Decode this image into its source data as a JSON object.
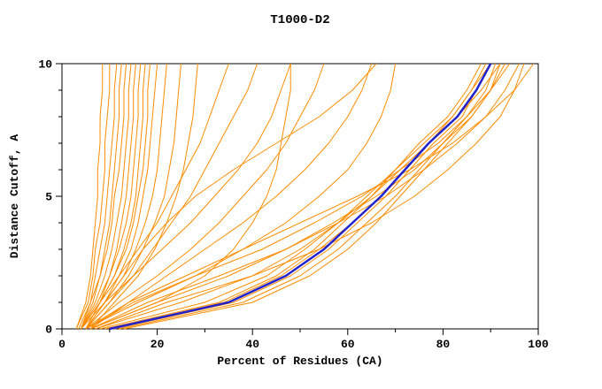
{
  "chart_data": {
    "type": "line",
    "title": "T1000-D2",
    "xlabel": "Percent of Residues (CA)",
    "ylabel": "Distance Cutoff, A",
    "xlim": [
      0,
      100
    ],
    "ylim": [
      0,
      10
    ],
    "xticks": [
      0,
      20,
      40,
      60,
      80,
      100
    ],
    "xminor_step": 10,
    "yticks": [
      0,
      5,
      10
    ],
    "yminor_step": 1,
    "grid": false,
    "legend": "none",
    "colors": {
      "model": "#FF8C00",
      "highlight": "#2222CC",
      "axis": "#000000",
      "background": "#FFFFFF"
    },
    "y_levels": [
      0,
      1,
      2,
      3,
      4,
      5,
      6,
      7,
      8,
      9,
      10
    ],
    "models": {
      "color_key": "model",
      "curves": [
        [
          3,
          5,
          6,
          6.5,
          7,
          7.5,
          7.5,
          8,
          8,
          8.5,
          8.5
        ],
        [
          3,
          5.5,
          6.5,
          7,
          8,
          8.5,
          9,
          9,
          9.5,
          10,
          10
        ],
        [
          4,
          6,
          7,
          8,
          9,
          9.5,
          10,
          10.5,
          11,
          11,
          11.5
        ],
        [
          4,
          6.5,
          8,
          9,
          10,
          10.5,
          11,
          11.5,
          12,
          12,
          12.5
        ],
        [
          3.5,
          6,
          8,
          9.5,
          10.5,
          11,
          12,
          12.5,
          13,
          13,
          13.5
        ],
        [
          4,
          7,
          9,
          10.5,
          11.5,
          12.5,
          13,
          13.5,
          14,
          14,
          14.5
        ],
        [
          5,
          8,
          10,
          11.5,
          12.5,
          13.5,
          14,
          14.5,
          15,
          15,
          15.5
        ],
        [
          4,
          7.5,
          10,
          12,
          13.5,
          14.5,
          15,
          15.5,
          16,
          16,
          16.5
        ],
        [
          5,
          8,
          11,
          13,
          14.5,
          15.5,
          16,
          16.5,
          17,
          17,
          17.5
        ],
        [
          4,
          8,
          11,
          13.5,
          15,
          16,
          17,
          17.5,
          18,
          18,
          18.5
        ],
        [
          5,
          9,
          12,
          14.5,
          16,
          17,
          18,
          18.5,
          19,
          19.5,
          20
        ],
        [
          5,
          9,
          13,
          15.5,
          17.5,
          19,
          20,
          20.5,
          21,
          21.5,
          22
        ],
        [
          5,
          10,
          14,
          17,
          19.5,
          21.5,
          22.5,
          23.5,
          24,
          24.5,
          25
        ],
        [
          6,
          11,
          16,
          19.5,
          22,
          24,
          25.5,
          26.5,
          27.5,
          28,
          28.5
        ],
        [
          4,
          8,
          12,
          16,
          20,
          23,
          26,
          29,
          31,
          33,
          35
        ],
        [
          5,
          10,
          15,
          19,
          23,
          27,
          30,
          33,
          36,
          39,
          41
        ],
        [
          4,
          9,
          15,
          21,
          27,
          32,
          37,
          41,
          44,
          46,
          48
        ],
        [
          5,
          12,
          20,
          27,
          33,
          38,
          43,
          47,
          50,
          53,
          55
        ],
        [
          6,
          14,
          22,
          30,
          38,
          45,
          51,
          56,
          60,
          63,
          65
        ],
        [
          5,
          16,
          28,
          38,
          47,
          54,
          60,
          64,
          67,
          69,
          70
        ],
        [
          5,
          9,
          13,
          17,
          22,
          28,
          36,
          45,
          54,
          61,
          66
        ],
        [
          6,
          20,
          30,
          36,
          40,
          43,
          45,
          46,
          47,
          48,
          48
        ],
        [
          9,
          33,
          45,
          53,
          59,
          65,
          70,
          75,
          81,
          85,
          88
        ],
        [
          11,
          36,
          48,
          56,
          62,
          68,
          73,
          78,
          84,
          87,
          90
        ],
        [
          10,
          34,
          46,
          54,
          61,
          67,
          72,
          77,
          82,
          86,
          89
        ],
        [
          12,
          38,
          50,
          58,
          64,
          70,
          75,
          80,
          85,
          89,
          91
        ],
        [
          8,
          30,
          43,
          51,
          58,
          64,
          70,
          76,
          82,
          86,
          90
        ],
        [
          7,
          25,
          40,
          50,
          58,
          65,
          71,
          77,
          83,
          88,
          92
        ],
        [
          6,
          20,
          35,
          47,
          57,
          66,
          74,
          80,
          86,
          90,
          93
        ],
        [
          5,
          15,
          28,
          42,
          53,
          63,
          71,
          79,
          85,
          90,
          94
        ],
        [
          6,
          18,
          33,
          47,
          58,
          68,
          76,
          83,
          89,
          93,
          96
        ],
        [
          7,
          22,
          40,
          54,
          65,
          74,
          81,
          87,
          92,
          95,
          97
        ],
        [
          5,
          14,
          26,
          38,
          50,
          62,
          73,
          82,
          89,
          95,
          99
        ],
        [
          13,
          40,
          52,
          60,
          66,
          71,
          76,
          81,
          86,
          90,
          92
        ]
      ]
    },
    "highlight": {
      "color_key": "highlight",
      "width": 2.5,
      "x": [
        10,
        35,
        47,
        55,
        61,
        67,
        72,
        77,
        83,
        87,
        90
      ]
    }
  }
}
